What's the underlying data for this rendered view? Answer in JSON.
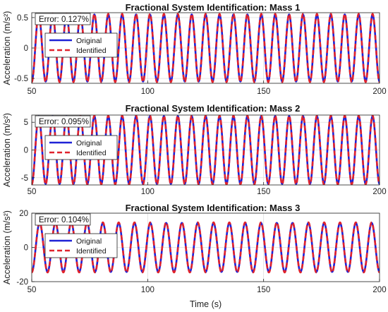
{
  "xlabel": "Time (s)",
  "chart_data": [
    {
      "type": "line",
      "title": "Fractional System Identification: Mass 1",
      "ylabel": "Acceleration (m/s²)",
      "xlim": [
        50,
        200
      ],
      "ylim": [
        -0.58,
        0.58
      ],
      "xticks": [
        50,
        100,
        150,
        200
      ],
      "yticks": [
        -0.5,
        0,
        0.5
      ],
      "annotation": "Error: 0.127%",
      "grid": true,
      "legend_placement": "upper-left",
      "series": [
        {
          "name": "Original",
          "color": "#1f22d6",
          "style": "solid",
          "amplitude": 0.55,
          "cycles": 25
        },
        {
          "name": "Identified",
          "color": "#e0232d",
          "style": "dashed",
          "amplitude": 0.56,
          "cycles": 25
        }
      ]
    },
    {
      "type": "line",
      "title": "Fractional System Identification: Mass 2",
      "ylabel": "Acceleration (m/s²)",
      "xlim": [
        50,
        200
      ],
      "ylim": [
        -6.3,
        6.3
      ],
      "xticks": [
        50,
        100,
        150,
        200
      ],
      "yticks": [
        -5,
        0,
        5
      ],
      "annotation": "Error: 0.095%",
      "grid": true,
      "legend_placement": "upper-left",
      "series": [
        {
          "name": "Original",
          "color": "#1f22d6",
          "style": "solid",
          "amplitude": 6.1,
          "cycles": 25
        },
        {
          "name": "Identified",
          "color": "#e0232d",
          "style": "dashed",
          "amplitude": 6.2,
          "cycles": 25
        }
      ]
    },
    {
      "type": "line",
      "title": "Fractional System Identification: Mass 3",
      "ylabel": "Acceleration (m/s²)",
      "xlim": [
        50,
        200
      ],
      "ylim": [
        -20,
        20
      ],
      "xticks": [
        50,
        100,
        150,
        200
      ],
      "yticks": [
        -20,
        0,
        20
      ],
      "annotation": "Error: 0.104%",
      "grid": true,
      "legend_placement": "upper-left",
      "series": [
        {
          "name": "Original",
          "color": "#1f22d6",
          "style": "solid",
          "amplitude": 14.3,
          "cycles": 22
        },
        {
          "name": "Identified",
          "color": "#e0232d",
          "style": "dashed",
          "amplitude": 14.6,
          "cycles": 22
        }
      ]
    }
  ]
}
